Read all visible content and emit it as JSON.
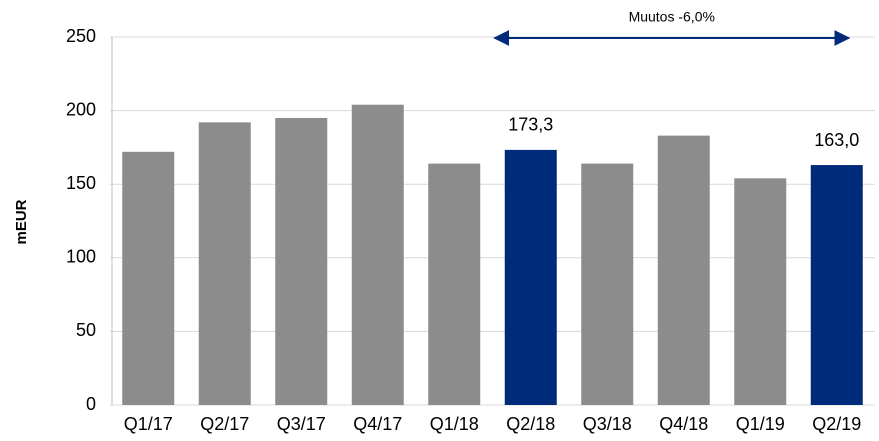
{
  "chart_data": {
    "type": "bar",
    "y_label": "mEUR",
    "annotation": "Muutos -6,0%",
    "categories": [
      "Q1/17",
      "Q2/17",
      "Q3/17",
      "Q4/17",
      "Q1/18",
      "Q2/18",
      "Q3/18",
      "Q4/18",
      "Q1/19",
      "Q2/19"
    ],
    "values": [
      172,
      192,
      195,
      204,
      164,
      173.3,
      164,
      183,
      154,
      163.0
    ],
    "value_labels": [
      null,
      null,
      null,
      null,
      null,
      "173,3",
      null,
      null,
      null,
      "163,0"
    ],
    "colors": [
      "#8c8c8c",
      "#8c8c8c",
      "#8c8c8c",
      "#8c8c8c",
      "#8c8c8c",
      "#002a7a",
      "#8c8c8c",
      "#8c8c8c",
      "#8c8c8c",
      "#002a7a"
    ],
    "ylim": [
      0,
      250
    ],
    "yticks": [
      0,
      50,
      100,
      150,
      200,
      250
    ],
    "grid": true
  }
}
